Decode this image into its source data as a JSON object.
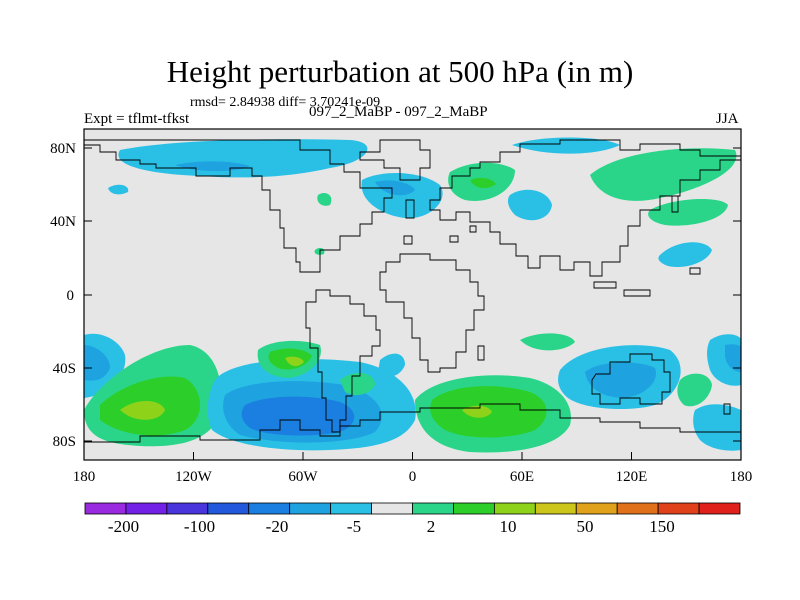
{
  "title": "Height perturbation at 500 hPa (in m)",
  "stats": "rmsd= 2.84938 diff= 3.70241e-09",
  "left_subtitle": "Expt = tflmt-tfkst",
  "center_subtitle": "097_2_MaBP - 097_2_MaBP",
  "right_subtitle": "JJA",
  "map": {
    "lat_ticks": [
      "80N",
      "40N",
      "0",
      "40S",
      "80S"
    ],
    "lon_ticks": [
      "180",
      "120W",
      "60W",
      "0",
      "60E",
      "120E",
      "180"
    ],
    "background": "#e6e6e6"
  },
  "colorbar": {
    "colors": [
      "#9a2ae0",
      "#7321e6",
      "#4a35dd",
      "#2158dc",
      "#1a7fe0",
      "#1ea2e0",
      "#2ac0e6",
      "#e6e6e6",
      "#2ad58a",
      "#2ccf2a",
      "#8ed21a",
      "#cdc61a",
      "#e0a21a",
      "#e0701a",
      "#e0401a",
      "#e0201a"
    ],
    "labels": [
      "-200",
      "-100",
      "-20",
      "-5",
      "2",
      "10",
      "50",
      "150"
    ]
  }
}
